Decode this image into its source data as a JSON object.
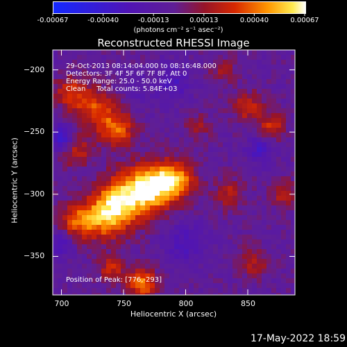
{
  "chart_data": {
    "type": "heatmap",
    "title": "Reconstructed RHESSI Image",
    "xlabel": "Heliocentric X (arcsec)",
    "ylabel": "Heliocentric Y (arcsec)",
    "xlim": [
      693,
      888
    ],
    "ylim": [
      -381,
      -184
    ],
    "xticks": [
      700,
      750,
      800,
      850
    ],
    "yticks": [
      -200,
      -250,
      -300,
      -350
    ],
    "colorbar": {
      "ticks": [
        "-0.00067",
        "-0.00040",
        "-0.00013",
        "0.00013",
        "0.00040",
        "0.00067"
      ],
      "units": "(photons cm⁻² s⁻¹ asec⁻²)",
      "range": [
        -0.00067,
        0.00067
      ]
    },
    "annotations": {
      "time": "29-Oct-2013 08:14:04.000 to 08:16:48.000",
      "detectors": "Detectors: 3F 4F 5F 6F 7F 8F, Att 0",
      "energy": "Energy Range: 25.0 - 50.0 keV",
      "clean": "Clean     Total counts: 5.84E+03",
      "peak": "Position of Peak: [776,-293]"
    },
    "peak": [
      776,
      -293
    ],
    "blobs": [
      {
        "x": 776,
        "y": -293,
        "v": 1.0,
        "s": 18
      },
      {
        "x": 752,
        "y": -303,
        "v": 0.85,
        "s": 20
      },
      {
        "x": 735,
        "y": -318,
        "v": 0.75,
        "s": 18
      },
      {
        "x": 712,
        "y": -322,
        "v": 0.55,
        "s": 14
      },
      {
        "x": 795,
        "y": -288,
        "v": 0.6,
        "s": 14
      },
      {
        "x": 745,
        "y": -248,
        "v": 0.6,
        "s": 14
      },
      {
        "x": 728,
        "y": -232,
        "v": 0.55,
        "s": 16
      },
      {
        "x": 708,
        "y": -218,
        "v": 0.5,
        "s": 13
      },
      {
        "x": 712,
        "y": -265,
        "v": 0.45,
        "s": 12
      },
      {
        "x": 765,
        "y": -372,
        "v": 0.7,
        "s": 12
      },
      {
        "x": 740,
        "y": -360,
        "v": 0.45,
        "s": 10
      },
      {
        "x": 850,
        "y": -230,
        "v": 0.45,
        "s": 12
      },
      {
        "x": 870,
        "y": -245,
        "v": 0.5,
        "s": 10
      },
      {
        "x": 835,
        "y": -300,
        "v": 0.4,
        "s": 12
      },
      {
        "x": 880,
        "y": -300,
        "v": 0.45,
        "s": 10
      },
      {
        "x": 855,
        "y": -355,
        "v": 0.35,
        "s": 12
      },
      {
        "x": 810,
        "y": -245,
        "v": 0.3,
        "s": 10
      },
      {
        "x": 830,
        "y": -200,
        "v": 0.3,
        "s": 10
      },
      {
        "x": 800,
        "y": -340,
        "v": -0.35,
        "s": 16
      },
      {
        "x": 700,
        "y": -255,
        "v": -0.6,
        "s": 10
      },
      {
        "x": 700,
        "y": -340,
        "v": -0.4,
        "s": 10
      },
      {
        "x": 790,
        "y": -210,
        "v": -0.35,
        "s": 14
      },
      {
        "x": 860,
        "y": -265,
        "v": -0.4,
        "s": 10
      },
      {
        "x": 760,
        "y": -215,
        "v": -0.2,
        "s": 12
      }
    ]
  },
  "footer": {
    "date": "17-May-2022 18:59"
  }
}
